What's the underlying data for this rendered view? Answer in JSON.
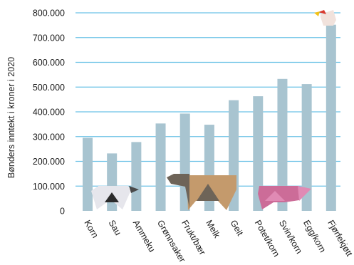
{
  "chart_data": {
    "type": "bar",
    "title": "",
    "xlabel": "",
    "ylabel": "Bønders inntekt i kroner i 2020",
    "ylim": [
      0,
      800000
    ],
    "yticks": [
      0,
      100000,
      200000,
      300000,
      400000,
      500000,
      600000,
      700000,
      800000
    ],
    "ytick_labels": [
      "0",
      "100.000",
      "200.000",
      "300.000",
      "400.000",
      "500.000",
      "600.000",
      "700.000",
      "800.000"
    ],
    "grid": true,
    "categories": [
      "Korn",
      "Sau",
      "Ammeku",
      "Grønnsaker",
      "Frukt/bær",
      "Melk",
      "Geit",
      "Potet/korn",
      "Svin/korn",
      "Egg/korn",
      "Fjørfekjøtt"
    ],
    "values": [
      295000,
      232000,
      278000,
      353000,
      393000,
      348000,
      447000,
      463000,
      533000,
      512000,
      752000
    ],
    "colors": {
      "bar": "#a8c4d0",
      "grid": "#6cc2e6",
      "sheep_body": "#e6e6ec",
      "sheep_dark": "#2b2b2b",
      "cow_body": "#c49a6c",
      "cow_dark": "#6e6458",
      "pig_body": "#cc6c98",
      "pig_light": "#e08ab4",
      "chicken_body": "#f1e2dc",
      "chicken_comb": "#d93a2e",
      "chicken_beak": "#f2c218"
    },
    "illustrations": [
      "sheep-icon",
      "cow-icon",
      "pig-icon",
      "chicken-icon"
    ]
  }
}
